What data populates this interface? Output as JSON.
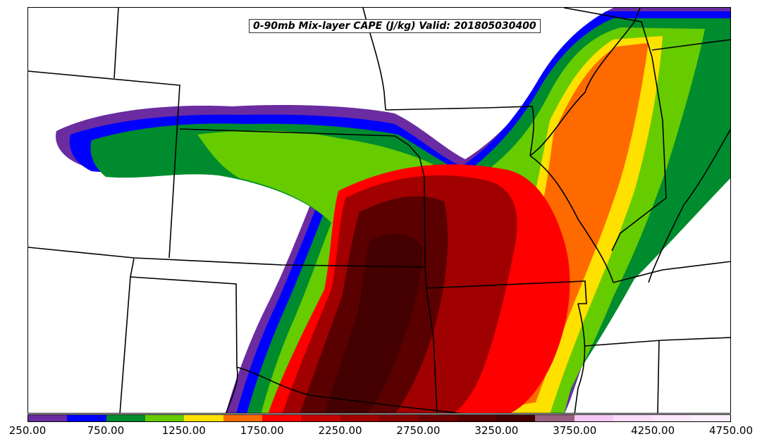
{
  "map": {
    "title": "0-90mb Mix-layer CAPE (J/kg) Valid: 201805030400",
    "field": "CAPE",
    "units": "J/kg",
    "valid_time": "201805030400",
    "colors": {
      "background": "#ffffff",
      "borders": "#000000"
    }
  },
  "colorbar": {
    "levels": [
      250,
      500,
      750,
      1000,
      1250,
      1500,
      1750,
      2000,
      2250,
      2500,
      2750,
      3000,
      3250,
      3500,
      3750,
      4000,
      4250,
      4500,
      4750
    ],
    "colors": [
      "#6a2ca0",
      "#0000ff",
      "#008c2e",
      "#66cc00",
      "#ffe100",
      "#ff6a00",
      "#ff0000",
      "#c40000",
      "#a00000",
      "#8a0000",
      "#700000",
      "#5a0000",
      "#440000",
      "#9a6080",
      "#f7c8f7",
      "#fbdcfb",
      "#fde8fd",
      "#fff0ff"
    ],
    "tick_labels": [
      "250.00",
      "750.00",
      "1250.00",
      "1750.00",
      "2250.00",
      "2750.00",
      "3250.00",
      "3750.00",
      "4250.00",
      "4750.00"
    ]
  }
}
